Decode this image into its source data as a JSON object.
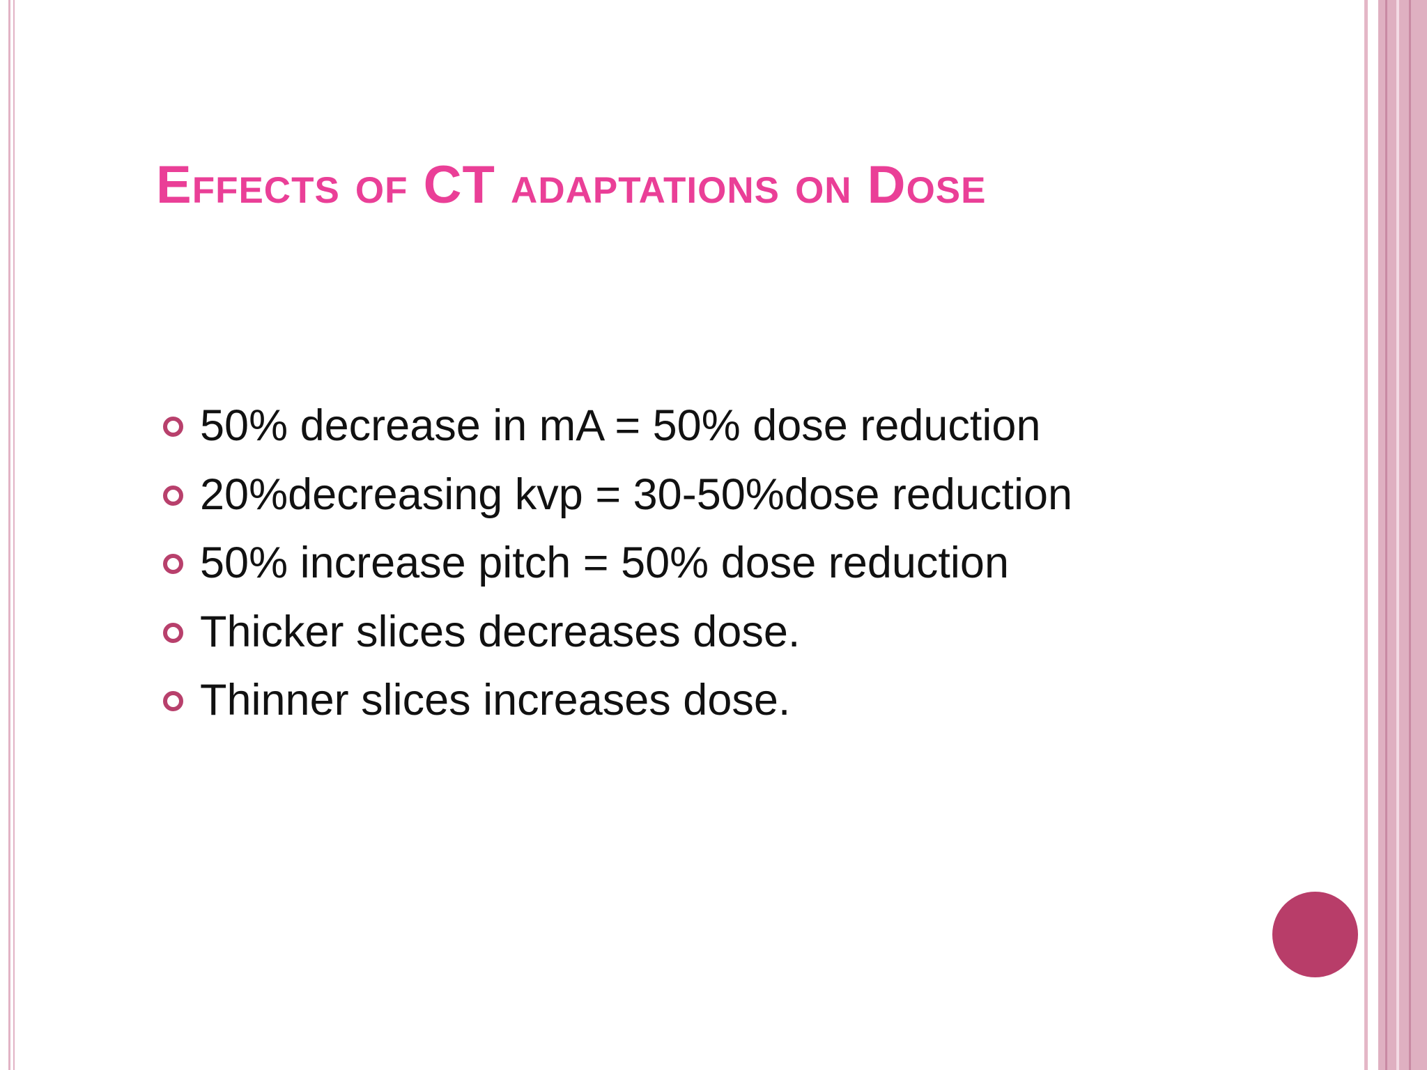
{
  "slide": {
    "title": "Effects of CT adaptations on Dose",
    "bullets": [
      "50% decrease in mA = 50% dose reduction",
      "20%decreasing kvp = 30-50%dose reduction",
      "50% increase pitch = 50% dose reduction",
      "Thicker slices decreases dose.",
      "Thinner slices increases dose."
    ]
  }
}
